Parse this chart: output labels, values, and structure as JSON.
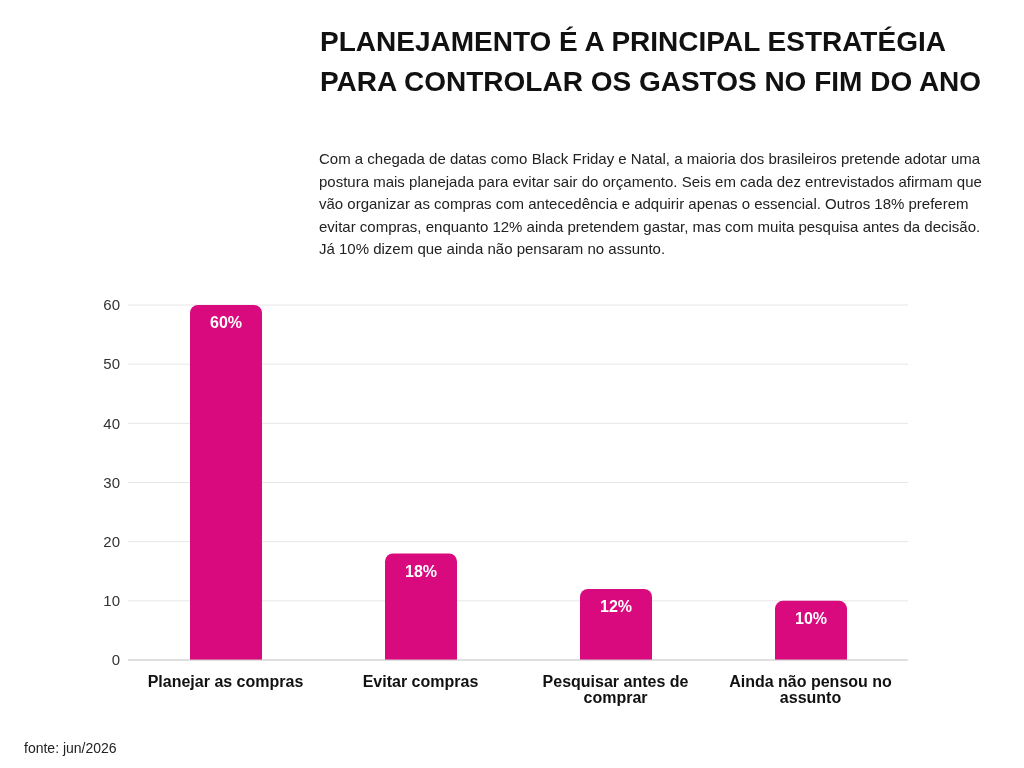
{
  "chart_data": {
    "type": "bar",
    "title": "PLANEJAMENTO É A PRINCIPAL ESTRATÉGIA PARA CONTROLAR OS GASTOS NO FIM DO ANO",
    "subtitle": "Com a chegada de datas como Black Friday e Natal, a maioria dos brasileiros pretende adotar uma postura mais planejada para evitar sair do orçamento. Seis em cada dez entrevistados afirmam que vão organizar as compras com antecedência e adquirir apenas o essencial. Outros 18% preferem evitar compras, enquanto 12% ainda pretendem gastar, mas com muita pesquisa antes da decisão. Já 10% dizem que ainda não pensaram no assunto.",
    "categories": [
      "Planejar as compras",
      "Evitar compras",
      "Pesquisar antes de comprar",
      "Ainda não pensou no assunto"
    ],
    "values": [
      60,
      18,
      12,
      10
    ],
    "value_labels": [
      "60%",
      "18%",
      "12%",
      "10%"
    ],
    "color": "#d90a7e",
    "ylim": [
      0,
      60
    ],
    "yticks": [
      0,
      10,
      20,
      30,
      40,
      50,
      60
    ],
    "grid": "y",
    "legend": false,
    "annotations": [
      "fonte: jun/2026"
    ]
  }
}
